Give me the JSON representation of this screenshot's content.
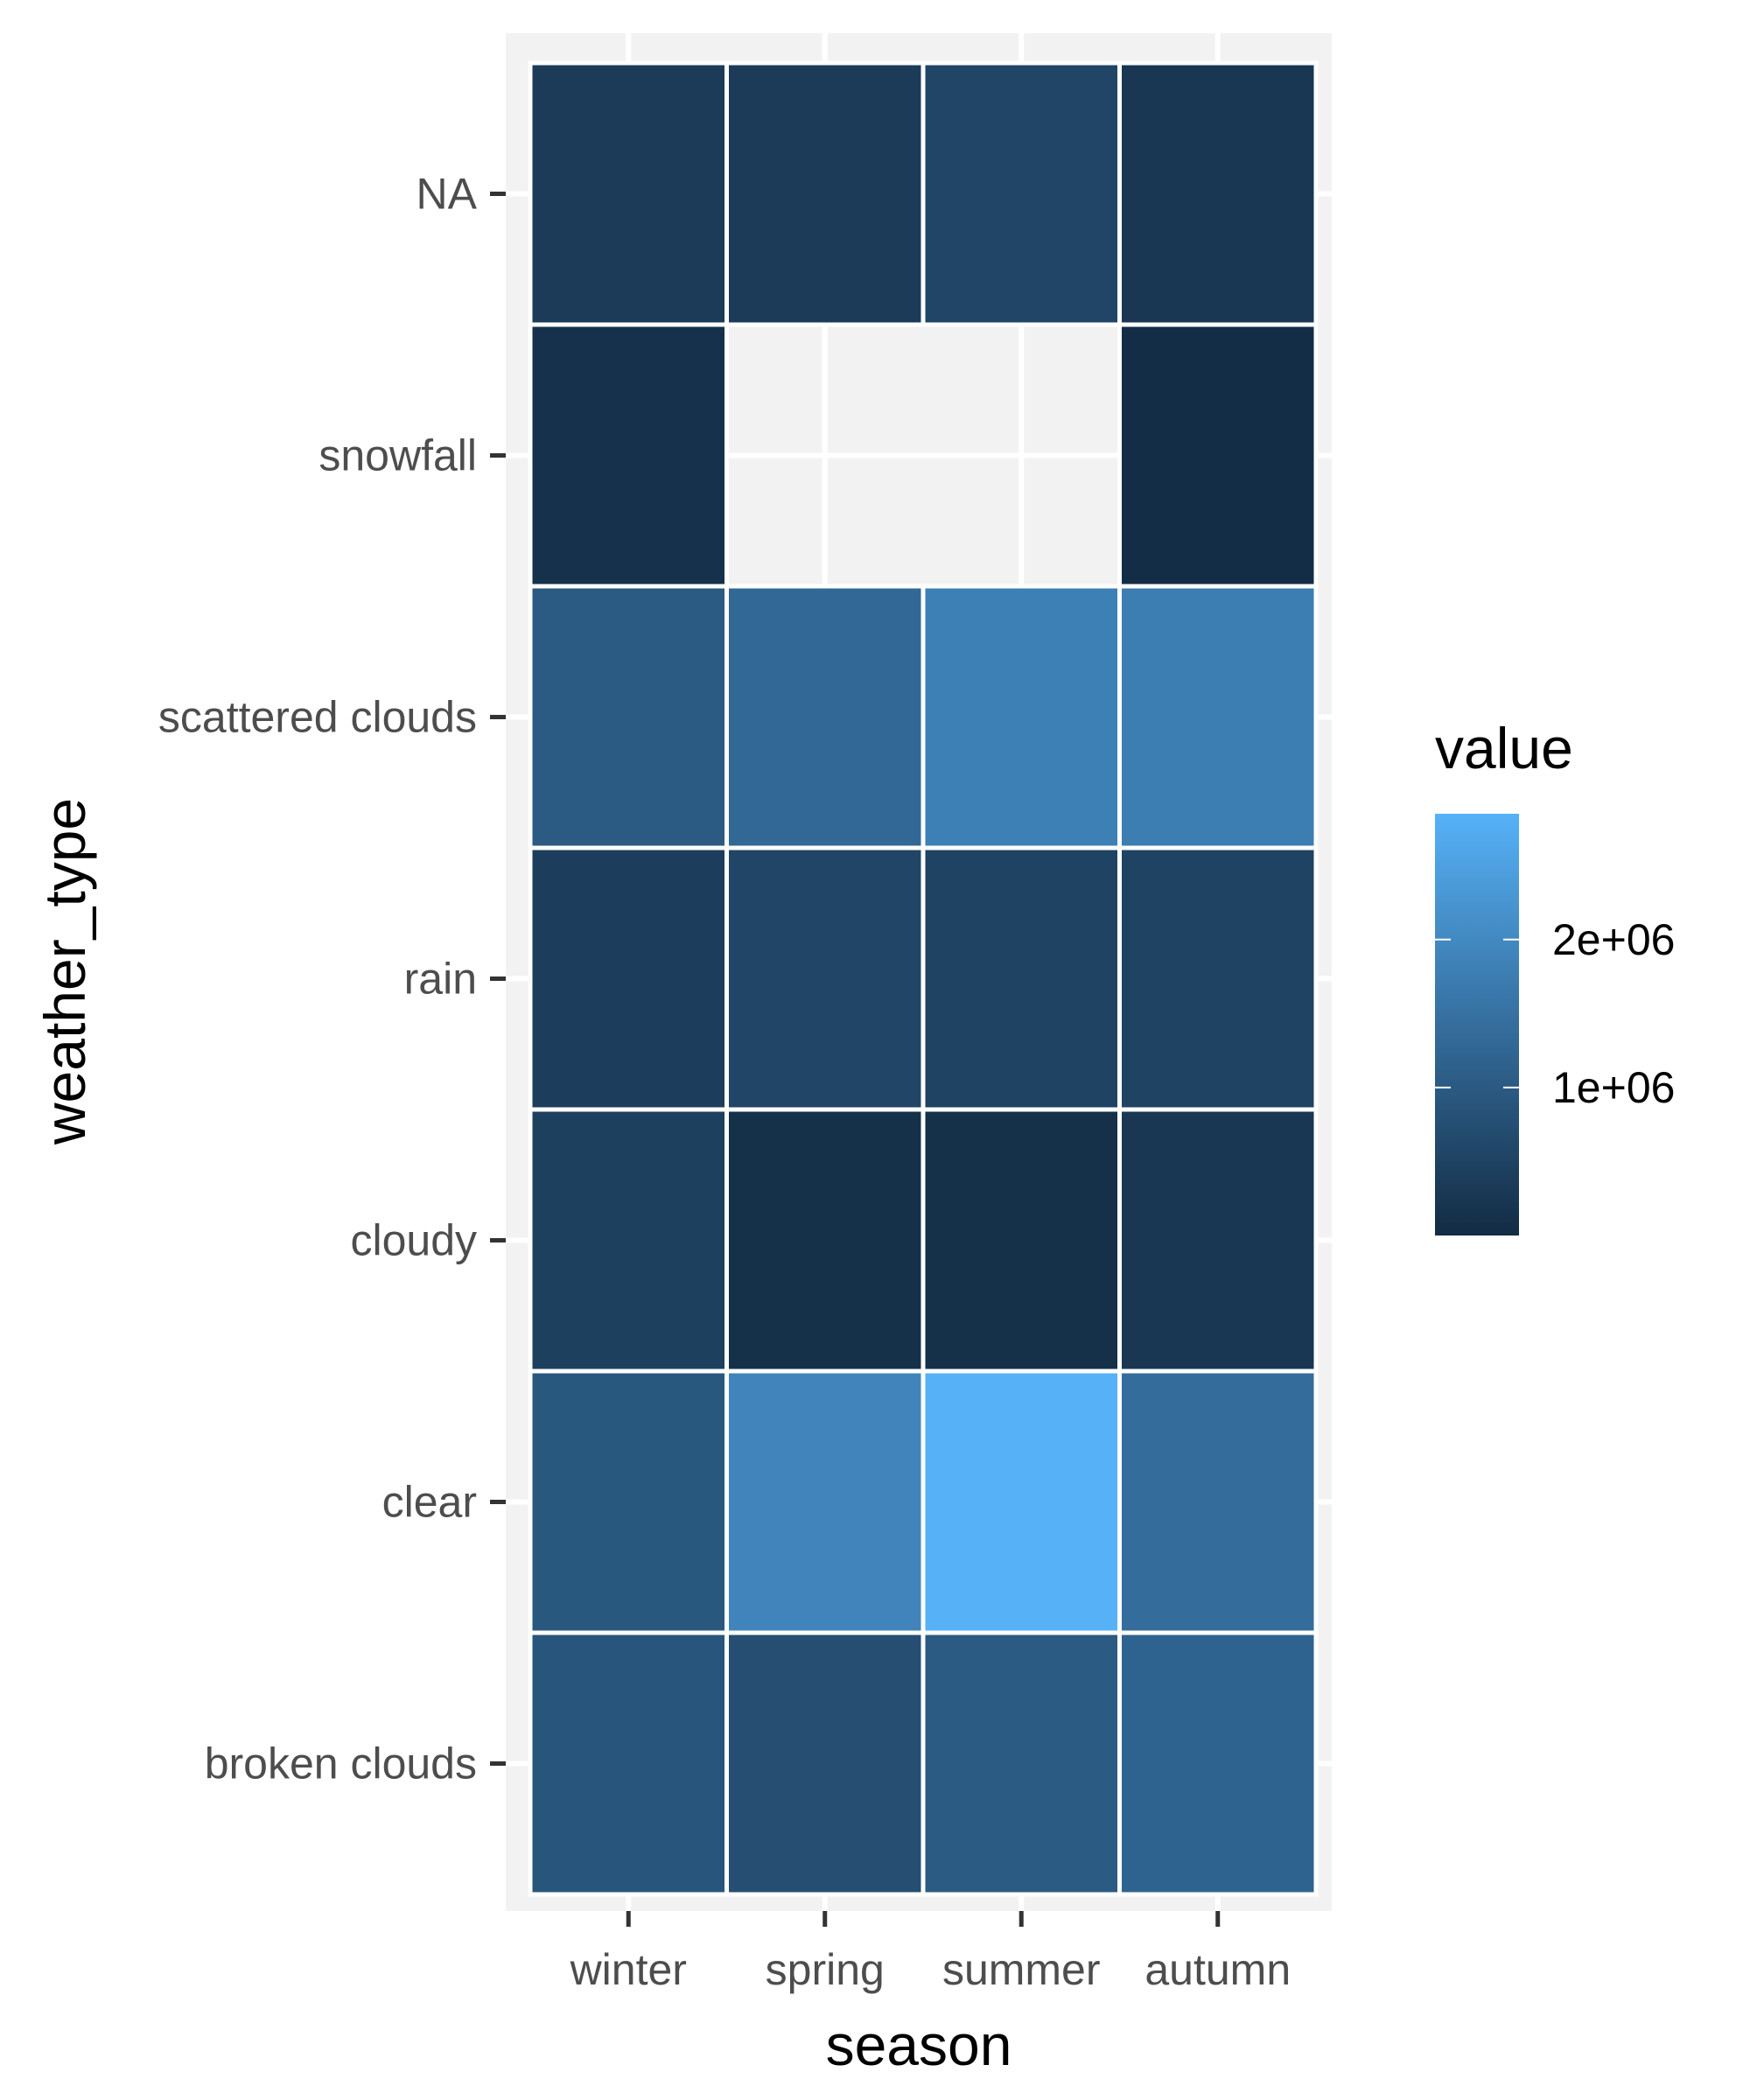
{
  "chart_data": {
    "type": "heatmap",
    "xlabel": "season",
    "ylabel": "weather_type",
    "x_categories": [
      "winter",
      "spring",
      "summer",
      "autumn"
    ],
    "y_categories": [
      "broken clouds",
      "clear",
      "cloudy",
      "rain",
      "scattered clouds",
      "snowfall",
      "NA"
    ],
    "values": [
      [
        900000,
        750000,
        1000000,
        1200000
      ],
      [
        950000,
        1900000,
        2850000,
        1400000
      ],
      [
        450000,
        100000,
        100000,
        250000
      ],
      [
        400000,
        550000,
        500000,
        500000
      ],
      [
        1000000,
        1300000,
        1800000,
        1750000
      ],
      [
        120000,
        null,
        null,
        50000
      ],
      [
        350000,
        330000,
        550000,
        250000
      ]
    ],
    "legend": {
      "title": "value",
      "ticks": [
        {
          "value": 1000000,
          "label": "1e+06"
        },
        {
          "value": 2000000,
          "label": "2e+06"
        }
      ],
      "min": 0,
      "max": 2850000,
      "low_color": "#132B43",
      "high_color": "#56B1F7",
      "na_color": "#f2f2f2",
      "placement": "right"
    },
    "grid": true,
    "panel_background": "#f2f2f2",
    "tile_border_color": "#ffffff"
  }
}
